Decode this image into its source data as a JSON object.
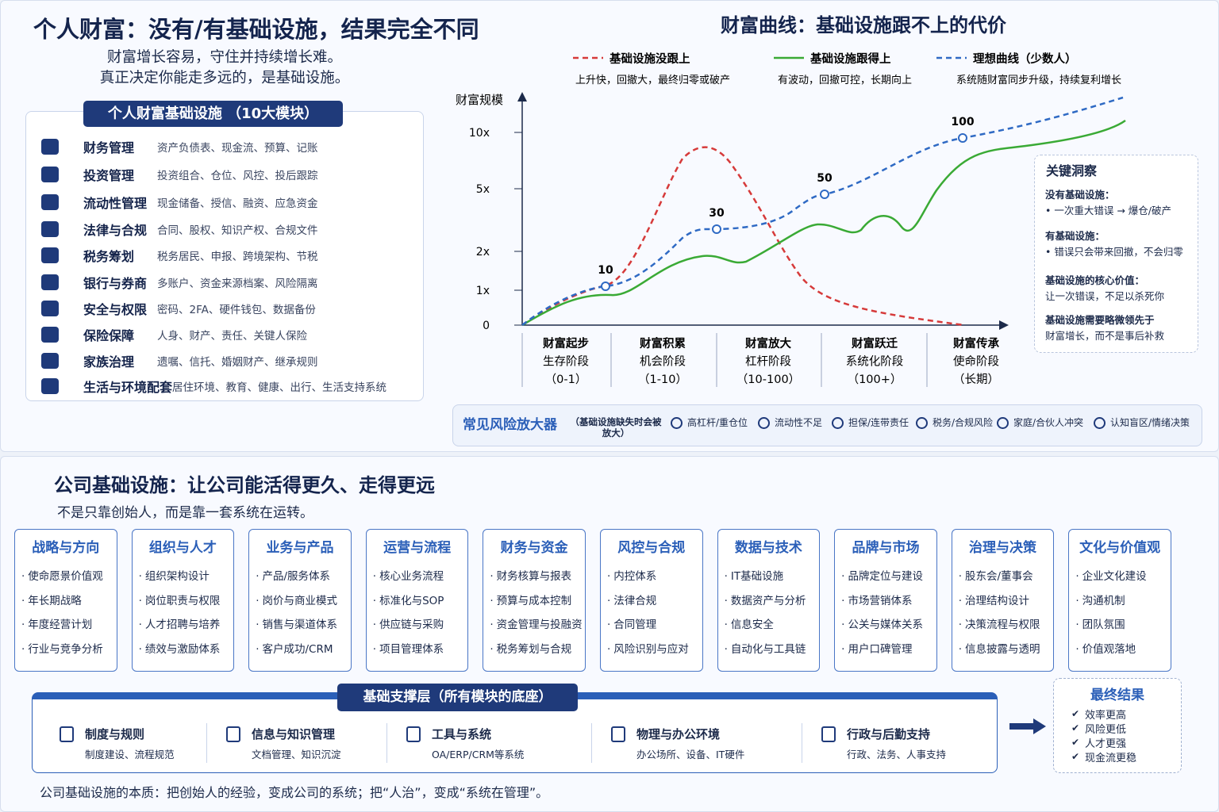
{
  "personal": {
    "title": "个人财富：没有/有基础设施，结果完全不同",
    "subtitle": [
      "财富增长容易，守住并持续增长难。",
      "真正决定你能走多远的，是基础设施。"
    ],
    "modules_title": "个人财富基础设施 （10大模块）",
    "modules": [
      {
        "name": "财务管理",
        "desc": "资产负债表、现金流、预算、记账"
      },
      {
        "name": "投资管理",
        "desc": "投资组合、仓位、风控、投后跟踪"
      },
      {
        "name": "流动性管理",
        "desc": "现金储备、授信、融资、应急资金"
      },
      {
        "name": "法律与合规",
        "desc": "合同、股权、知识产权、合规文件"
      },
      {
        "name": "税务筹划",
        "desc": "税务居民、申报、跨境架构、节税"
      },
      {
        "name": "银行与券商",
        "desc": "多账户、资金来源档案、风险隔离"
      },
      {
        "name": "安全与权限",
        "desc": "密码、2FA、硬件钱包、数据备份"
      },
      {
        "name": "保险保障",
        "desc": "人身、财产、责任、关键人保险"
      },
      {
        "name": "家族治理",
        "desc": "遗嘱、信托、婚姻财产、继承规则"
      },
      {
        "name": "生活与环境配套",
        "desc": "居住环境、教育、健康、出行、生活支持系统"
      }
    ]
  },
  "curve": {
    "title": "财富曲线：基础设施跟不上的代价",
    "legend": [
      {
        "name": "基础设施没跟上",
        "desc": "上升快，回撤大，最终归零或破产"
      },
      {
        "name": "基础设施跟得上",
        "desc": "有波动，回撤可控，长期向上"
      },
      {
        "name": "理想曲线（少数人）",
        "desc": "系统随财富同步升级，持续复利增长"
      }
    ],
    "y_label": "财富规模",
    "y_ticks": [
      "10x",
      "5x",
      "2x",
      "1x",
      "0"
    ],
    "point_labels": [
      "10",
      "30",
      "50",
      "100"
    ],
    "stages": [
      {
        "name": "财富起步",
        "phase": "生存阶段",
        "range": "（0-1）"
      },
      {
        "name": "财富积累",
        "phase": "机会阶段",
        "range": "（1-10）"
      },
      {
        "name": "财富放大",
        "phase": "杠杆阶段",
        "range": "（10-100）"
      },
      {
        "name": "财富跃迁",
        "phase": "系统化阶段",
        "range": "（100+）"
      },
      {
        "name": "财富传承",
        "phase": "使命阶段",
        "range": "（长期）"
      }
    ],
    "insight": {
      "title": "关键洞察",
      "items": [
        [
          "没有基础设施：",
          "• 一次重大错误 → 爆仓/破产"
        ],
        [
          "有基础设施：",
          "• 错误只会带来回撤，不会归零"
        ],
        [
          "基础设施的核心价值：",
          "让一次错误，不足以杀死你"
        ],
        [
          "基础设施需要略微领先于",
          "财富增长，而不是事后补救"
        ]
      ]
    },
    "risk": {
      "title": "常见风险放大器",
      "note": "（基础设施缺失时会被放大）",
      "items": [
        "高杠杆/重仓位",
        "流动性不足",
        "担保/连带责任",
        "税务/合规风险",
        "家庭/合伙人冲突",
        "认知盲区/情绪决策"
      ]
    }
  },
  "company": {
    "title": "公司基础设施：让公司能活得更久、走得更远",
    "subtitle": "不是只靠创始人，而是靠一套系统在运转。",
    "modules": [
      {
        "name": "战略与方向",
        "items": [
          "使命愿景价值观",
          "年长期战略",
          "年度经营计划",
          "行业与竞争分析"
        ]
      },
      {
        "name": "组织与人才",
        "items": [
          "组织架构设计",
          "岗位职责与权限",
          "人才招聘与培养",
          "绩效与激励体系"
        ]
      },
      {
        "name": "业务与产品",
        "items": [
          "产品/服务体系",
          "岗价与商业模式",
          "销售与渠道体系",
          "客户成功/CRM"
        ]
      },
      {
        "name": "运营与流程",
        "items": [
          "核心业务流程",
          "标准化与SOP",
          "供应链与采购",
          "项目管理体系"
        ]
      },
      {
        "name": "财务与资金",
        "items": [
          "财务核算与报表",
          "预算与成本控制",
          "资金管理与投融资",
          "税务筹划与合规"
        ]
      },
      {
        "name": "风控与合规",
        "items": [
          "内控体系",
          "法律合规",
          "合同管理",
          "风险识别与应对"
        ]
      },
      {
        "name": "数据与技术",
        "items": [
          "IT基础设施",
          "数据资产与分析",
          "信息安全",
          "自动化与工具链"
        ]
      },
      {
        "name": "品牌与市场",
        "items": [
          "品牌定位与建设",
          "市场营销体系",
          "公关与媒体关系",
          "用户口碑管理"
        ]
      },
      {
        "name": "治理与决策",
        "items": [
          "股东会/董事会",
          "治理结构设计",
          "决策流程与权限",
          "信息披露与透明"
        ]
      },
      {
        "name": "文化与价值观",
        "items": [
          "企业文化建设",
          "沟通机制",
          "团队氛围",
          "价值观落地"
        ]
      }
    ],
    "base": {
      "title": "基础支撑层（所有模块的底座）",
      "items": [
        {
          "name": "制度与规则",
          "desc": "制度建设、流程规范"
        },
        {
          "name": "信息与知识管理",
          "desc": "文档管理、知识沉淀"
        },
        {
          "name": "工具与系统",
          "desc": "OA/ERP/CRM等系统"
        },
        {
          "name": "物理与办公环境",
          "desc": "办公场所、设备、IT硬件"
        },
        {
          "name": "行政与后勤支持",
          "desc": "行政、法务、人事支持"
        }
      ]
    },
    "result": {
      "title": "最终结果",
      "items": [
        "效率更高",
        "风险更低",
        "人才更强",
        "现金流更稳"
      ]
    },
    "footer": "公司基础设施的本质：把创始人的经验，变成公司的系统；把“人治”，变成“系统在管理”。"
  }
}
